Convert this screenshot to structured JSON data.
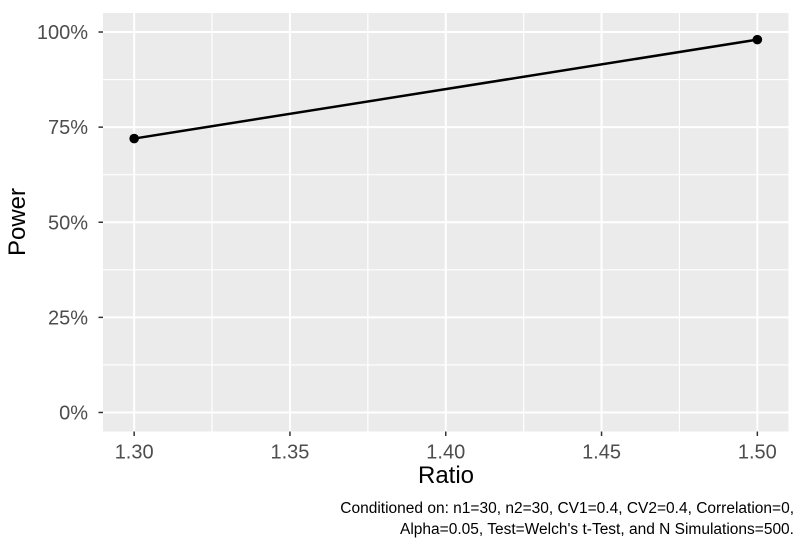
{
  "colors": {
    "page_background": "#FFFFFF",
    "panel_background": "#EBEBEB",
    "gridline": "#FFFFFF",
    "line": "#000000",
    "point": "#000000",
    "axis_text": "#4D4D4D",
    "tick_mark": "#333333",
    "axis_title": "#000000",
    "caption_text": "#000000"
  },
  "chart_data": {
    "type": "line",
    "title": "",
    "xlabel": "Ratio",
    "ylabel": "Power",
    "x": [
      1.3,
      1.5
    ],
    "series": [
      {
        "name": "Power",
        "values_percent": [
          72,
          98
        ]
      }
    ],
    "x_ticks": {
      "values": [
        1.3,
        1.35,
        1.4,
        1.45,
        1.5
      ],
      "labels": [
        "1.30",
        "1.35",
        "1.40",
        "1.45",
        "1.50"
      ]
    },
    "y_ticks": {
      "values": [
        0,
        25,
        50,
        75,
        100
      ],
      "labels": [
        "0%",
        "25%",
        "50%",
        "75%",
        "100%"
      ]
    },
    "x_minor_gridlines": [
      1.325,
      1.375,
      1.425,
      1.475
    ],
    "y_minor_gridlines": [
      12.5,
      37.5,
      62.5,
      87.5
    ],
    "xlim": [
      1.29,
      1.51
    ],
    "ylim": [
      -5,
      105
    ],
    "grid": true,
    "legend_position": "none",
    "marker": "filled-circle"
  },
  "caption": {
    "line1": "Conditioned on: n1=30, n2=30, CV1=0.4, CV2=0.4, Correlation=0,",
    "line2": "Alpha=0.05, Test=Welch's t-Test, and N Simulations=500."
  }
}
